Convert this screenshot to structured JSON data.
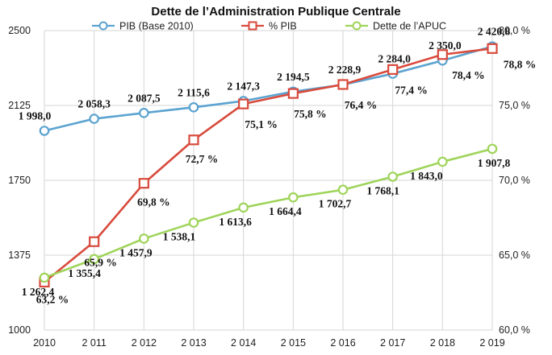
{
  "chart_data": {
    "type": "line",
    "title": "Dette de l’Administration Publique Centrale",
    "categories": [
      "2010",
      "2 011",
      "2 012",
      "2 013",
      "2 014",
      "2 015",
      "2 016",
      "2 017",
      "2 018",
      "2 019"
    ],
    "y_left": {
      "min": 1000,
      "max": 2500,
      "ticks": [
        "1000",
        "1375",
        "1750",
        "2125",
        "2500"
      ]
    },
    "y_right": {
      "min": 60,
      "max": 80,
      "ticks": [
        "60,0 %",
        "65,0 %",
        "70,0 %",
        "75,0 %",
        "80,0 %"
      ]
    },
    "grid": true,
    "legend_position": "top",
    "series": [
      {
        "name": "PIB (Base 2010)",
        "axis": "left",
        "color": "#5ba3d0",
        "marker": "circle",
        "values": [
          1998.0,
          2058.3,
          2087.5,
          2115.6,
          2147.3,
          2194.5,
          2228.9,
          2284.0,
          2350.0,
          2420.8
        ],
        "labels": [
          "1 998,0",
          "2 058,3",
          "2 087,5",
          "2 115,6",
          "2 147,3",
          "2 194,5",
          "2 228,9",
          "2 284,0",
          "2 350,0",
          "2 420,8"
        ]
      },
      {
        "name": "% PIB",
        "axis": "right",
        "color": "#d84a3c",
        "marker": "square",
        "values": [
          63.2,
          65.9,
          69.8,
          72.7,
          75.1,
          75.8,
          76.4,
          77.4,
          78.4,
          78.8
        ],
        "labels": [
          "63,2 %",
          "65,9 %",
          "69,8 %",
          "72,7 %",
          "75,1 %",
          "75,8 %",
          "76,4 %",
          "77,4 %",
          "78,4 %",
          "78,8 %"
        ]
      },
      {
        "name": "Dette de l’APUC",
        "axis": "left",
        "color": "#9fd45a",
        "marker": "circle",
        "values": [
          1262.4,
          1355.4,
          1457.9,
          1538.1,
          1613.6,
          1664.4,
          1702.7,
          1768.1,
          1843.0,
          1907.8
        ],
        "labels": [
          "1 262,4",
          "1 355,4",
          "1 457,9",
          "1 538,1",
          "1 613,6",
          "1 664,4",
          "1 702,7",
          "1 768,1",
          "1 843,0",
          "1 907,8"
        ]
      }
    ]
  }
}
